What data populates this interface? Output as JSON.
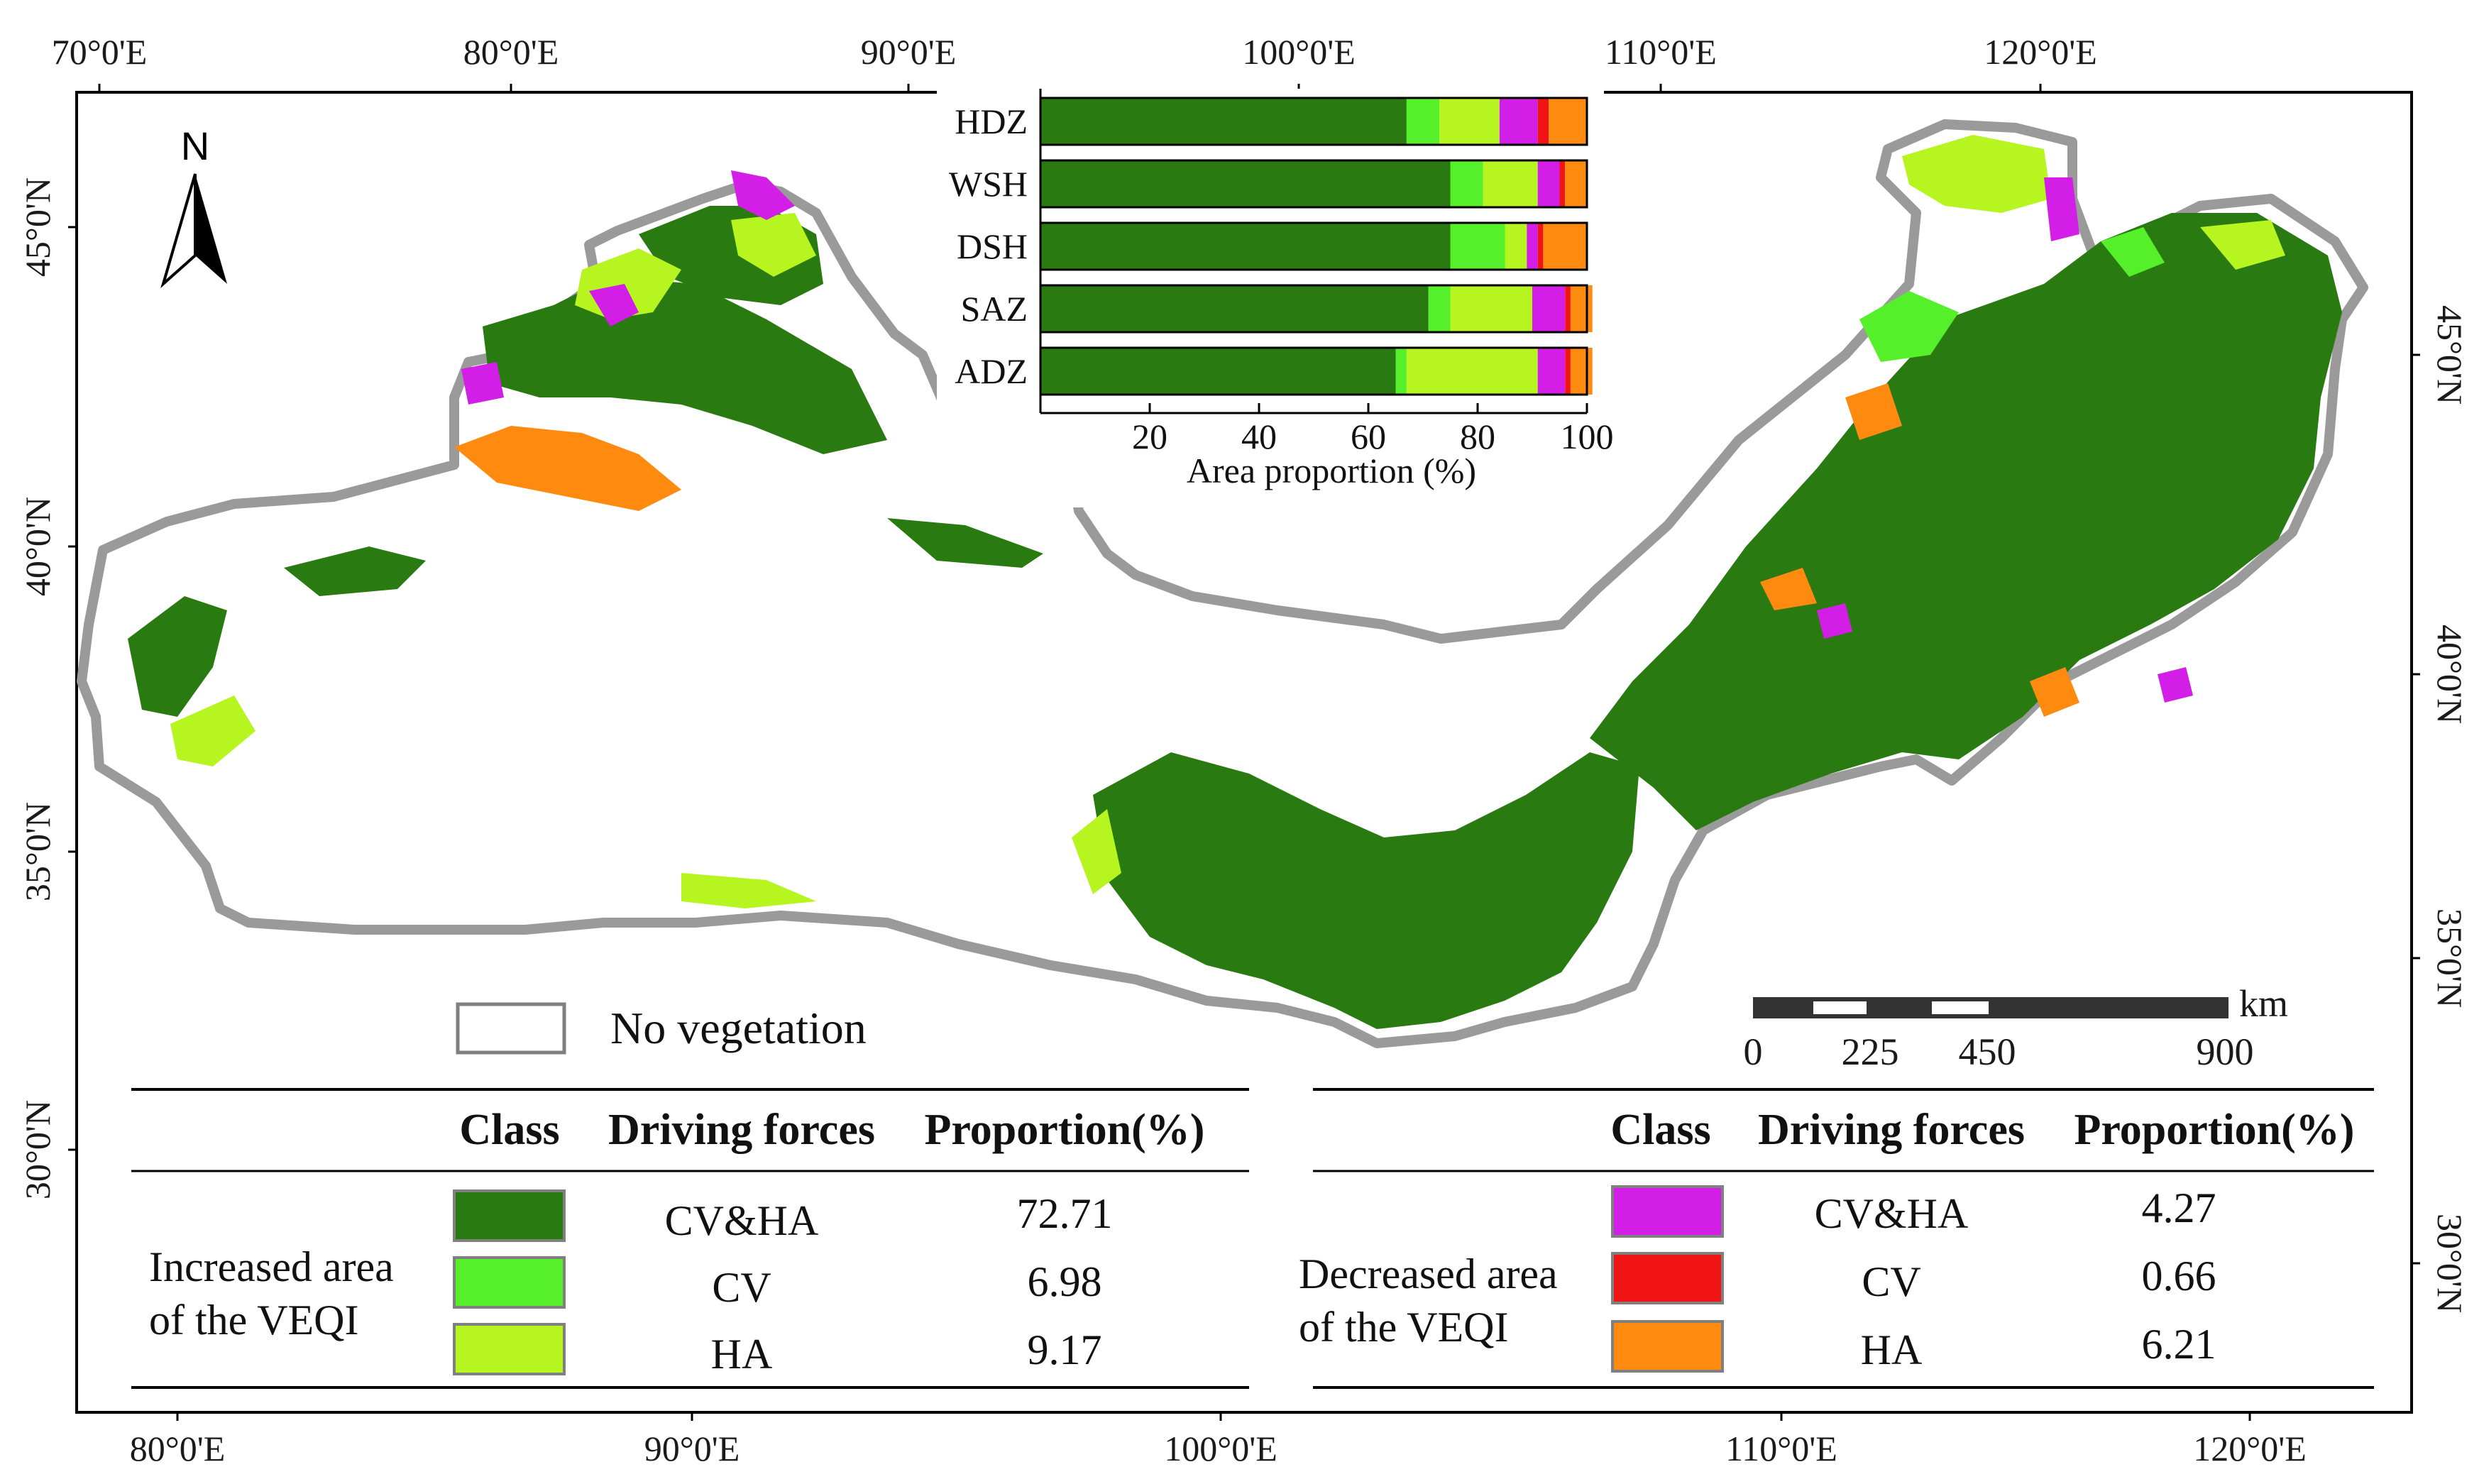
{
  "colors": {
    "cv_ha_inc": "#2a7a12",
    "cv_inc": "#55f02a",
    "ha_inc": "#b6f51f",
    "cv_ha_dec": "#d21ee6",
    "cv_dec": "#f01414",
    "ha_dec": "#ff8a10",
    "no_veg": "#ffffff",
    "boundary": "#9a9a9a"
  },
  "axes": {
    "top_lon": [
      "70°0'E",
      "80°0'E",
      "90°0'E",
      "100°0'E",
      "110°0'E",
      "120°0'E"
    ],
    "bottom_lon": [
      "80°0'E",
      "90°0'E",
      "100°0'E",
      "110°0'E",
      "120°0'E"
    ],
    "left_lat": [
      "45°0'N",
      "40°0'N",
      "35°0'N",
      "30°0'N"
    ],
    "right_lat": [
      "45°0'N",
      "40°0'N",
      "35°0'N",
      "30°0'N"
    ]
  },
  "north_arrow": {
    "label": "N"
  },
  "scale_bar": {
    "unit": "km",
    "labels": [
      "0",
      "225",
      "450",
      "900"
    ]
  },
  "no_vegetation_label": "No vegetation",
  "legend": {
    "headers": {
      "class": "Class",
      "driving": "Driving forces",
      "proportion": "Proportion(%)"
    },
    "increased": {
      "label_line1": "Increased area",
      "label_line2": "of  the VEQI",
      "rows": [
        {
          "force": "CV&HA",
          "proportion": "72.71",
          "color_key": "cv_ha_inc"
        },
        {
          "force": "CV",
          "proportion": "6.98",
          "color_key": "cv_inc"
        },
        {
          "force": "HA",
          "proportion": "9.17",
          "color_key": "ha_inc"
        }
      ]
    },
    "decreased": {
      "label_line1": "Decreased area",
      "label_line2": "of  the VEQI",
      "rows": [
        {
          "force": "CV&HA",
          "proportion": "4.27",
          "color_key": "cv_ha_dec"
        },
        {
          "force": "CV",
          "proportion": "0.66",
          "color_key": "cv_dec"
        },
        {
          "force": "HA",
          "proportion": "6.21",
          "color_key": "ha_dec"
        }
      ]
    }
  },
  "chart_data": {
    "type": "bar",
    "orientation": "horizontal-stacked",
    "categories": [
      "HDZ",
      "WSH",
      "DSH",
      "SAZ",
      "ADZ"
    ],
    "xlabel": "Area proportion (%)",
    "xlim": [
      0,
      100
    ],
    "xticks": [
      "20",
      "40",
      "60",
      "80",
      "100"
    ],
    "series": [
      {
        "color_key": "cv_ha_inc",
        "values": [
          67,
          75,
          75,
          71,
          65
        ]
      },
      {
        "color_key": "cv_inc",
        "values": [
          6,
          6,
          10,
          4,
          2
        ]
      },
      {
        "color_key": "ha_inc",
        "values": [
          11,
          10,
          4,
          15,
          24
        ]
      },
      {
        "color_key": "cv_ha_dec",
        "values": [
          7,
          4,
          2,
          6,
          5
        ]
      },
      {
        "color_key": "cv_dec",
        "values": [
          2,
          1,
          1,
          1,
          1
        ]
      },
      {
        "color_key": "ha_dec",
        "values": [
          7,
          4,
          8,
          4,
          4
        ]
      }
    ]
  }
}
